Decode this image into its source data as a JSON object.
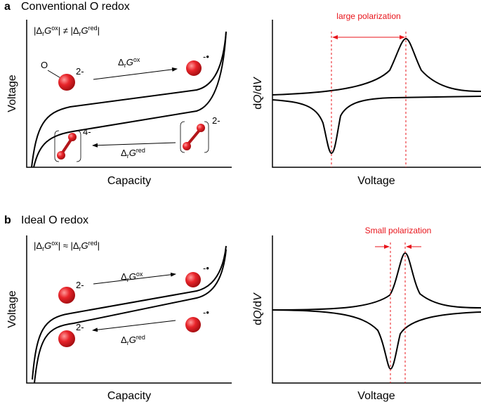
{
  "panel_a": {
    "letter": "a",
    "title": "Conventional O redox",
    "equation": [
      "|Δ",
      "r",
      "G",
      "ox",
      "| ≠ |Δ",
      "r",
      "G",
      "red",
      "|"
    ],
    "left": {
      "atom": "O",
      "charge_oxide": "2-",
      "charge_radical": "-•",
      "charge_peroxo4": "4-",
      "charge_peroxo2": "2-",
      "ox_label": [
        "Δ",
        "r",
        "G",
        "ox"
      ],
      "red_label": [
        "Δ",
        "r",
        "G",
        "red"
      ],
      "y_label": "Voltage",
      "x_label": "Capacity"
    },
    "right": {
      "y_label": [
        "d",
        "Q",
        "/d",
        "V"
      ],
      "x_label": "Voltage",
      "annotation": "large polarization"
    }
  },
  "panel_b": {
    "letter": "b",
    "title": "Ideal O redox",
    "equation": [
      "|Δ",
      "r",
      "G",
      "ox",
      "| ≈ |Δ",
      "r",
      "G",
      "red",
      "|"
    ],
    "left": {
      "charge_top_left": "2-",
      "charge_top_right": "-•",
      "charge_bottom_left": "2-",
      "charge_bottom_right": "-•",
      "ox_label": [
        "Δ",
        "r",
        "G",
        "ox"
      ],
      "red_label": [
        "Δ",
        "r",
        "G",
        "red"
      ],
      "y_label": "Voltage",
      "x_label": "Capacity"
    },
    "right": {
      "y_label": [
        "d",
        "Q",
        "/d",
        "V"
      ],
      "x_label": "Voltage",
      "annotation": "Small polarization"
    }
  }
}
